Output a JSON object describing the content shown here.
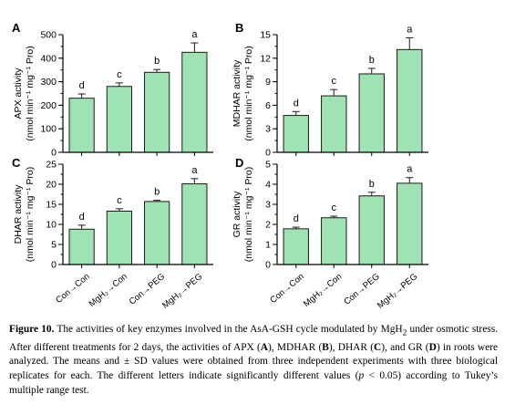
{
  "chart_data": [
    {
      "panel": "A",
      "type": "bar",
      "categories": [
        "Con→Con",
        "MgH₂→Con",
        "Con→PEG",
        "MgH₂→PEG"
      ],
      "values": [
        230,
        280,
        340,
        425
      ],
      "errors": [
        18,
        15,
        12,
        40
      ],
      "letters": [
        "d",
        "c",
        "b",
        "a"
      ],
      "ylabel_line1": "APX activity",
      "ylabel_line2": "(nmol min⁻¹ mg⁻¹ Pro)",
      "ylim": [
        0,
        500
      ],
      "yticks": [
        0,
        100,
        200,
        300,
        400,
        500
      ],
      "minor_step": 50
    },
    {
      "panel": "B",
      "type": "bar",
      "categories": [
        "Con→Con",
        "MgH₂→Con",
        "Con→PEG",
        "MgH₂→PEG"
      ],
      "values": [
        4.7,
        7.2,
        10.0,
        13.1
      ],
      "errors": [
        0.5,
        0.8,
        0.7,
        1.5
      ],
      "letters": [
        "d",
        "c",
        "b",
        "a"
      ],
      "ylabel_line1": "MDHAR activity",
      "ylabel_line2": "(nmol min⁻¹ mg⁻¹ Pro)",
      "ylim": [
        0,
        15
      ],
      "yticks": [
        0,
        3,
        6,
        9,
        12,
        15
      ],
      "minor_step": 1.5
    },
    {
      "panel": "C",
      "type": "bar",
      "categories": [
        "Con→Con",
        "MgH₂→Con",
        "Con→PEG",
        "MgH₂→PEG"
      ],
      "values": [
        8.8,
        13.3,
        15.7,
        20.1
      ],
      "errors": [
        1.0,
        0.6,
        0.3,
        1.3
      ],
      "letters": [
        "d",
        "c",
        "b",
        "a"
      ],
      "ylabel_line1": "DHAR activity",
      "ylabel_line2": "(nmol min⁻¹ mg⁻¹ Pro)",
      "ylim": [
        0,
        25
      ],
      "yticks": [
        0,
        5,
        10,
        15,
        20,
        25
      ],
      "minor_step": 2.5
    },
    {
      "panel": "D",
      "type": "bar",
      "categories": [
        "Con→Con",
        "MgH₂→Con",
        "Con→PEG",
        "MgH₂→PEG"
      ],
      "values": [
        1.78,
        2.33,
        3.42,
        4.05
      ],
      "errors": [
        0.08,
        0.08,
        0.18,
        0.28
      ],
      "letters": [
        "d",
        "c",
        "b",
        "a"
      ],
      "ylabel_line1": "GR activity",
      "ylabel_line2": "(nmol min⁻¹ mg⁻¹ Pro)",
      "ylim": [
        0,
        5
      ],
      "yticks": [
        0,
        1,
        2,
        3,
        4,
        5
      ],
      "minor_step": 0.5
    }
  ],
  "colors": {
    "bar_fill": "#9fe3b4",
    "bar_stroke": "#1a1a1a",
    "axis": "#000000"
  },
  "caption": {
    "label": "Figure 10.",
    "text_1": " The activities of key enzymes involved in the AsA-GSH cycle modulated by MgH",
    "sub_2": "2",
    "text_2": " under osmotic stress. After different treatments for 2 days, the activities of APX (",
    "bold_A": "A",
    "text_3": "), MDHAR (",
    "bold_B": "B",
    "text_4": "), DHAR (",
    "bold_C": "C",
    "text_5": "), and GR (",
    "bold_D": "D",
    "text_6": ") in roots were analyzed. The means and ± SD values were obtained from three independent experiments with three biological replicates for each. The different letters indicate significantly different values (",
    "italic_p": "p",
    "text_7": " < 0.05) according to Tukey’s multiple range test."
  }
}
